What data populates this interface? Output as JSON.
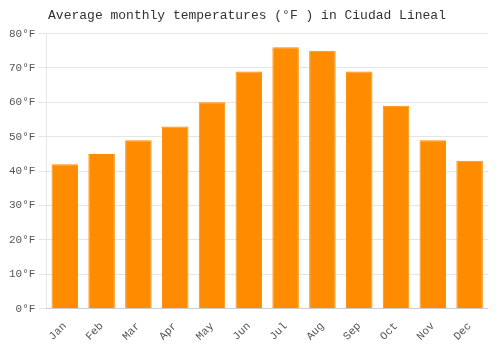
{
  "chart_data": {
    "type": "bar",
    "title": "Average monthly temperatures (°F ) in Ciudad Lineal",
    "categories": [
      "Jan",
      "Feb",
      "Mar",
      "Apr",
      "May",
      "Jun",
      "Jul",
      "Aug",
      "Sep",
      "Oct",
      "Nov",
      "Dec"
    ],
    "values": [
      42,
      45,
      49,
      53,
      60,
      69,
      76,
      75,
      69,
      59,
      49,
      43
    ],
    "color": "#FF8C00",
    "ylim": [
      0,
      80
    ],
    "yticks": [
      {
        "value": 0,
        "label": "0°F"
      },
      {
        "value": 10,
        "label": "10°F"
      },
      {
        "value": 20,
        "label": "20°F"
      },
      {
        "value": 30,
        "label": "30°F"
      },
      {
        "value": 40,
        "label": "40°F"
      },
      {
        "value": 50,
        "label": "50°F"
      },
      {
        "value": 60,
        "label": "60°F"
      },
      {
        "value": 70,
        "label": "70°F"
      },
      {
        "value": 80,
        "label": "80°F"
      }
    ],
    "grid": true
  }
}
